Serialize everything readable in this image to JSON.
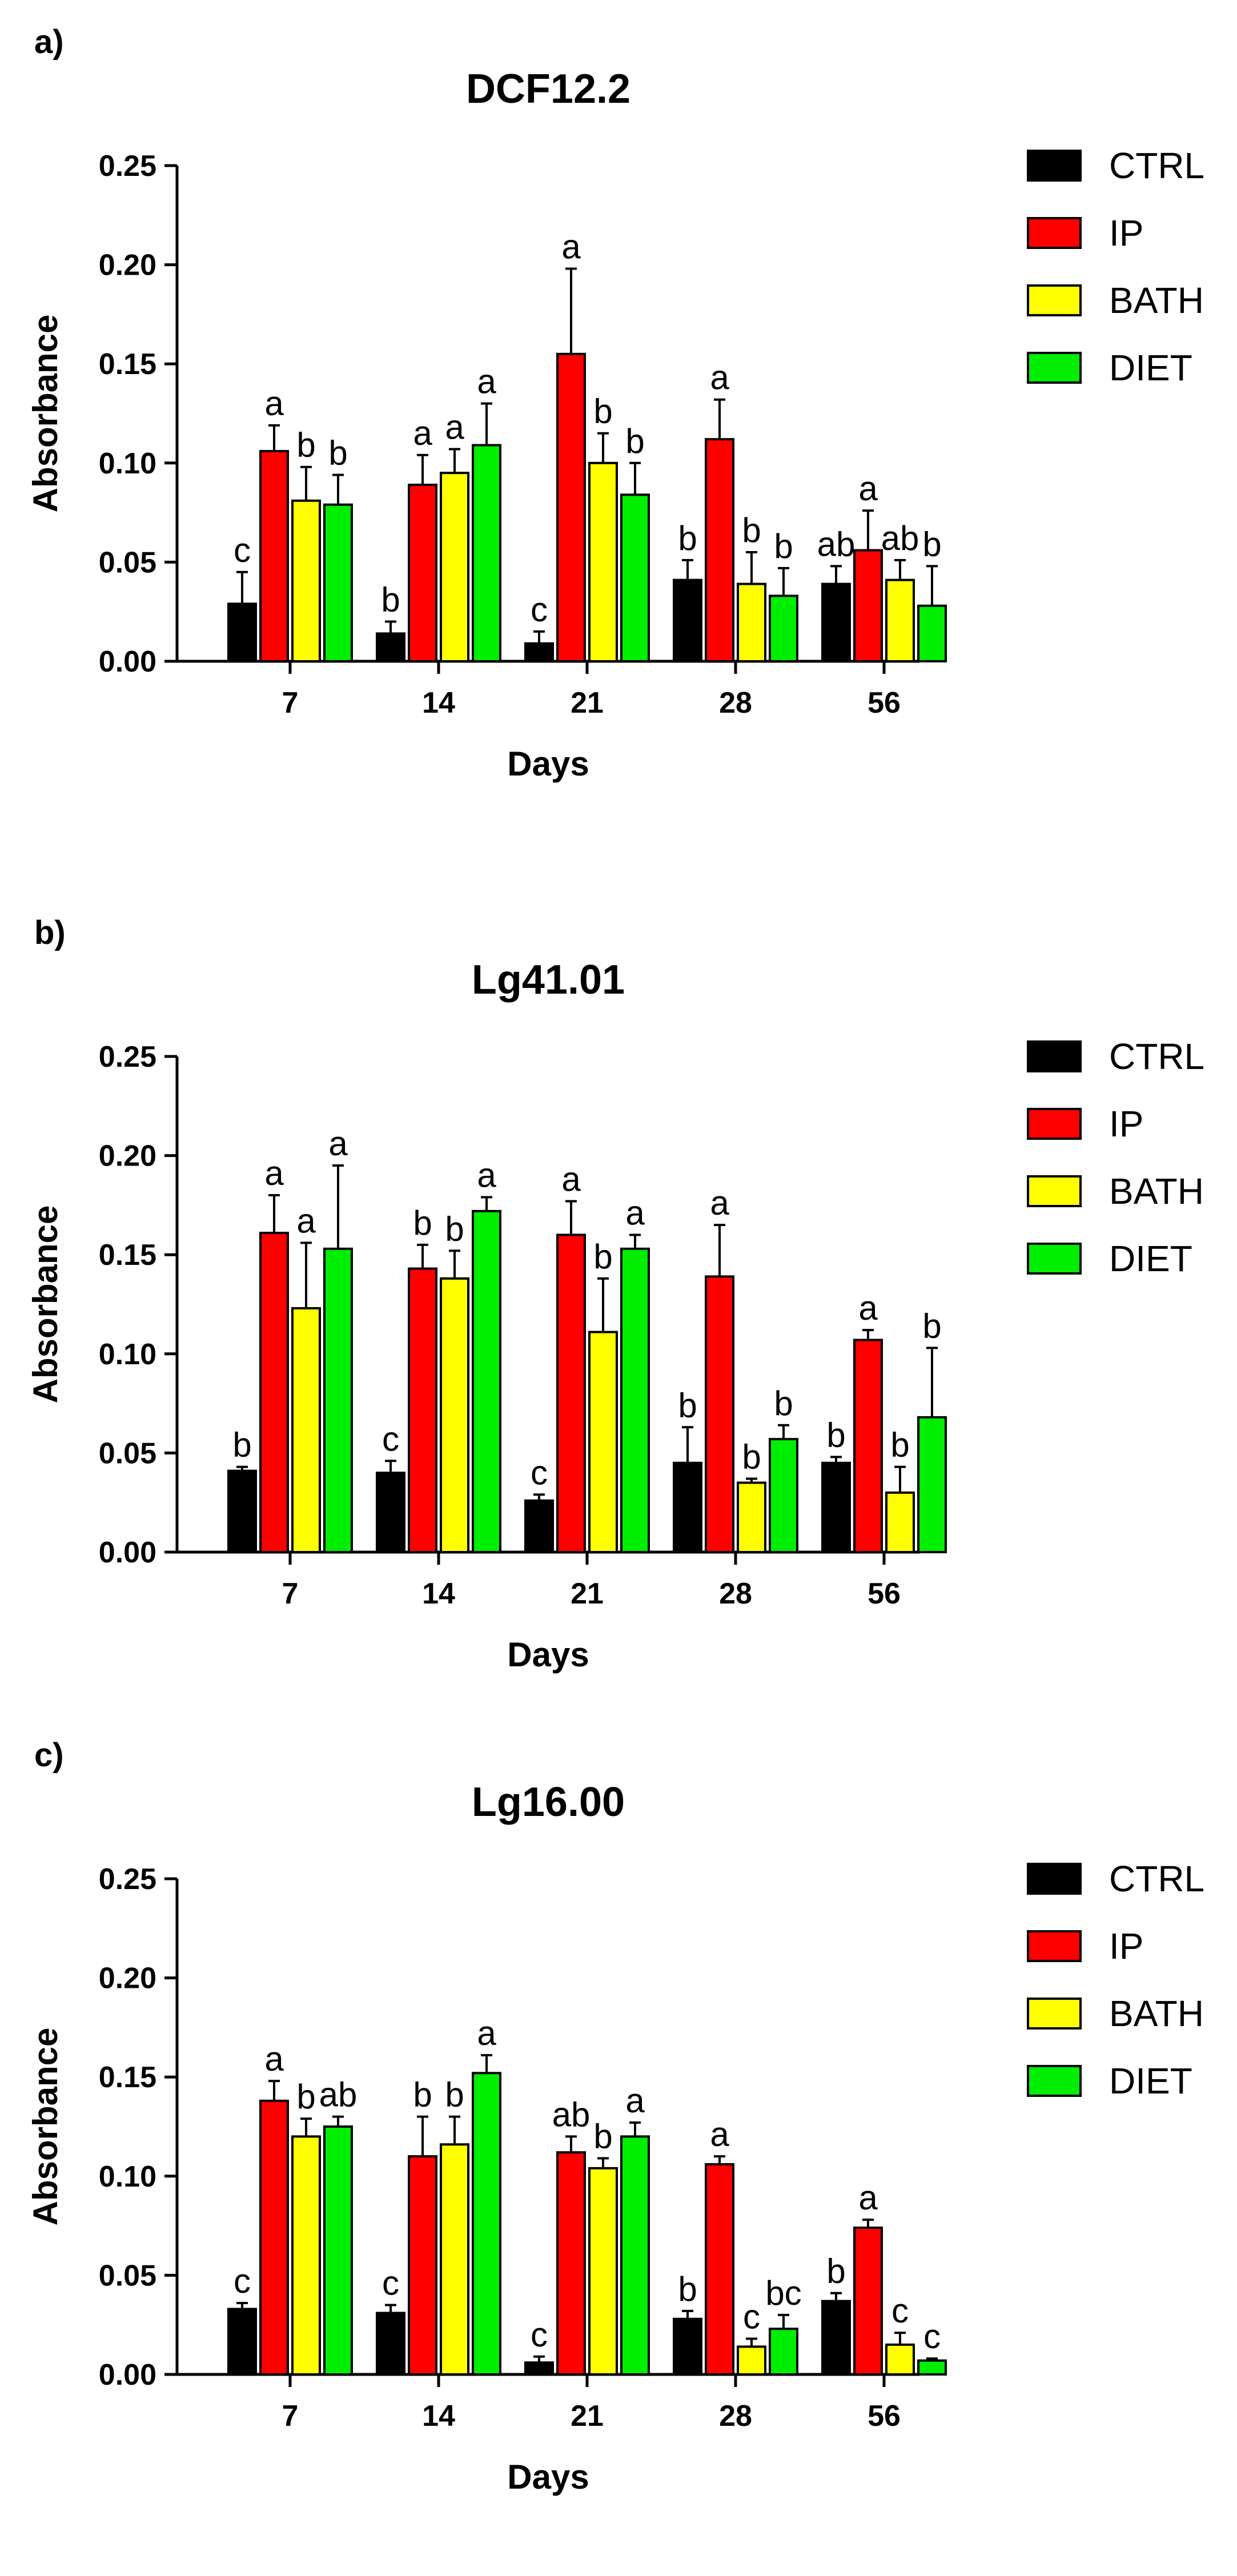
{
  "chart_data": [
    {
      "type": "bar",
      "panel": "a)",
      "title": "DCF12.2",
      "xlabel": "Days",
      "ylabel": "Absorbance",
      "ylim": [
        0,
        0.25
      ],
      "yticks": [
        "0.00",
        "0.05",
        "0.10",
        "0.15",
        "0.20",
        "0.25"
      ],
      "categories": [
        "7",
        "14",
        "21",
        "28",
        "56"
      ],
      "series": [
        {
          "name": "CTRL",
          "color": "#000000",
          "values": [
            0.029,
            0.014,
            0.009,
            0.041,
            0.039
          ],
          "errors": [
            0.016,
            0.006,
            0.006,
            0.01,
            0.009
          ],
          "labels": [
            "c",
            "b",
            "c",
            "b",
            "ab"
          ]
        },
        {
          "name": "IP",
          "color": "#ff0000",
          "values": [
            0.106,
            0.089,
            0.155,
            0.112,
            0.056
          ],
          "errors": [
            0.013,
            0.015,
            0.043,
            0.02,
            0.02
          ],
          "labels": [
            "a",
            "a",
            "a",
            "a",
            "a"
          ]
        },
        {
          "name": "BATH",
          "color": "#ffff00",
          "values": [
            0.081,
            0.095,
            0.1,
            0.039,
            0.041
          ],
          "errors": [
            0.017,
            0.012,
            0.015,
            0.016,
            0.01
          ],
          "labels": [
            "b",
            "a",
            "b",
            "b",
            "ab"
          ]
        },
        {
          "name": "DIET",
          "color": "#00ee00",
          "values": [
            0.079,
            0.109,
            0.084,
            0.033,
            0.028
          ],
          "errors": [
            0.015,
            0.021,
            0.016,
            0.014,
            0.02
          ],
          "labels": [
            "b",
            "a",
            "b",
            "b",
            "b"
          ]
        }
      ]
    },
    {
      "type": "bar",
      "panel": "b)",
      "title": "Lg41.01",
      "xlabel": "Days",
      "ylabel": "Absorbance",
      "ylim": [
        0,
        0.25
      ],
      "yticks": [
        "0.00",
        "0.05",
        "0.10",
        "0.15",
        "0.20",
        "0.25"
      ],
      "categories": [
        "7",
        "14",
        "21",
        "28",
        "56"
      ],
      "series": [
        {
          "name": "CTRL",
          "color": "#000000",
          "values": [
            0.041,
            0.04,
            0.026,
            0.045,
            0.045
          ],
          "errors": [
            0.002,
            0.006,
            0.003,
            0.018,
            0.003
          ],
          "labels": [
            "b",
            "c",
            "c",
            "b",
            "b"
          ]
        },
        {
          "name": "IP",
          "color": "#ff0000",
          "values": [
            0.161,
            0.143,
            0.16,
            0.139,
            0.107
          ],
          "errors": [
            0.019,
            0.012,
            0.017,
            0.026,
            0.005
          ],
          "labels": [
            "a",
            "b",
            "a",
            "a",
            "a"
          ]
        },
        {
          "name": "BATH",
          "color": "#ffff00",
          "values": [
            0.123,
            0.138,
            0.111,
            0.035,
            0.03
          ],
          "errors": [
            0.033,
            0.014,
            0.027,
            0.002,
            0.013
          ],
          "labels": [
            "a",
            "b",
            "b",
            "b",
            "b"
          ]
        },
        {
          "name": "DIET",
          "color": "#00ee00",
          "values": [
            0.153,
            0.172,
            0.153,
            0.057,
            0.068
          ],
          "errors": [
            0.042,
            0.007,
            0.007,
            0.007,
            0.035
          ],
          "labels": [
            "a",
            "a",
            "a",
            "b",
            "b"
          ]
        }
      ]
    },
    {
      "type": "bar",
      "panel": "c)",
      "title": "Lg16.00",
      "xlabel": "Days",
      "ylabel": "Absorbance",
      "ylim": [
        0,
        0.25
      ],
      "yticks": [
        "0.00",
        "0.05",
        "0.10",
        "0.15",
        "0.20",
        "0.25"
      ],
      "categories": [
        "7",
        "14",
        "21",
        "28",
        "56"
      ],
      "series": [
        {
          "name": "CTRL",
          "color": "#000000",
          "values": [
            0.033,
            0.031,
            0.006,
            0.028,
            0.037
          ],
          "errors": [
            0.003,
            0.004,
            0.003,
            0.004,
            0.004
          ],
          "labels": [
            "c",
            "c",
            "c",
            "b",
            "b"
          ]
        },
        {
          "name": "IP",
          "color": "#ff0000",
          "values": [
            0.138,
            0.11,
            0.112,
            0.106,
            0.074
          ],
          "errors": [
            0.01,
            0.02,
            0.008,
            0.004,
            0.004
          ],
          "labels": [
            "a",
            "b",
            "ab",
            "a",
            "a"
          ]
        },
        {
          "name": "BATH",
          "color": "#ffff00",
          "values": [
            0.12,
            0.116,
            0.104,
            0.014,
            0.015
          ],
          "errors": [
            0.009,
            0.014,
            0.005,
            0.004,
            0.006
          ],
          "labels": [
            "b",
            "b",
            "b",
            "c",
            "c"
          ]
        },
        {
          "name": "DIET",
          "color": "#00ee00",
          "values": [
            0.125,
            0.152,
            0.12,
            0.023,
            0.007
          ],
          "errors": [
            0.005,
            0.009,
            0.007,
            0.007,
            0.001
          ],
          "labels": [
            "ab",
            "a",
            "a",
            "bc",
            "c"
          ]
        }
      ]
    }
  ]
}
